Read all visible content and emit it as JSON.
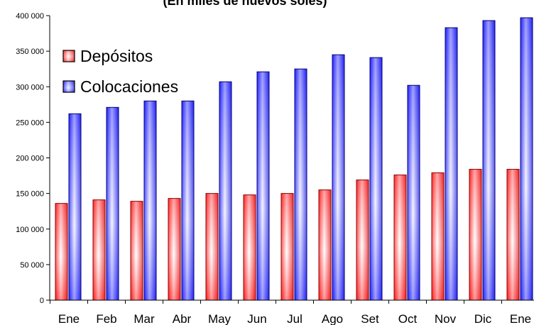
{
  "chart_data": {
    "type": "bar",
    "title": "(En miles de nuevos soles)",
    "categories": [
      "Ene",
      "Feb",
      "Mar",
      "Abr",
      "May",
      "Jun",
      "Jul",
      "Ago",
      "Set",
      "Oct",
      "Nov",
      "Dic",
      "Ene"
    ],
    "series": [
      {
        "name": "Depósitos",
        "color": "#e8262b",
        "values": [
          136000,
          141000,
          139000,
          143000,
          150000,
          148000,
          150000,
          155000,
          169000,
          176000,
          179000,
          184000,
          184000
        ]
      },
      {
        "name": "Colocaciones",
        "color": "#1f1fe0",
        "values": [
          262000,
          271000,
          280000,
          280000,
          307000,
          321000,
          325000,
          345000,
          341000,
          302000,
          383000,
          393000,
          397000
        ]
      }
    ],
    "ylim": [
      0,
      400000
    ],
    "yticks": [
      "0",
      "50 000",
      "100 000",
      "150 000",
      "200 000",
      "250 000",
      "300 000",
      "350 000",
      "400 000"
    ],
    "grid": false,
    "legend_position": "top-left"
  }
}
